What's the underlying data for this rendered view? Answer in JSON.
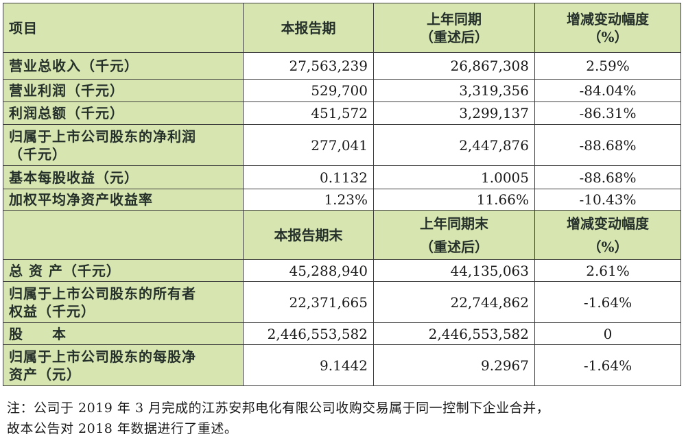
{
  "table": {
    "header1": {
      "item": "项目",
      "current": "本报告期",
      "prior_l1": "上年同期",
      "prior_l2": "（重述后）",
      "change_l1": "增减变动幅度",
      "change_l2": "（%）"
    },
    "rows1": [
      {
        "label": "营业总收入（千元）",
        "current": "27,563,239",
        "prior": "26,867,308",
        "change": "2.59%"
      },
      {
        "label": "营业利润（千元）",
        "current": "529,700",
        "prior": "3,319,356",
        "change": "-84.04%"
      },
      {
        "label": "利润总额（千元）",
        "current": "451,572",
        "prior": "3,299,137",
        "change": "-86.31%"
      },
      {
        "label_l1": "归属于上市公司股东的净利润",
        "label_l2": "（千元）",
        "current": "277,041",
        "prior": "2,447,876",
        "change": "-88.68%"
      },
      {
        "label": "基本每股收益（元）",
        "current": "0.1132",
        "prior": "1.0005",
        "change": "-88.68%"
      },
      {
        "label": "加权平均净资产收益率",
        "current": "1.23%",
        "prior": "11.66%",
        "change": "-10.43%"
      }
    ],
    "header2": {
      "current": "本报告期末",
      "prior_l1": "上年同期末",
      "prior_l2": "（重述后）",
      "change_l1": "增减变动幅度",
      "change_l2": "（%）"
    },
    "rows2": [
      {
        "label": "总 资 产（千元）",
        "current": "45,288,940",
        "prior": "44,135,063",
        "change": "2.61%"
      },
      {
        "label_l1": "归属于上市公司股东的所有者",
        "label_l2": "权益（千元）",
        "current": "22,371,665",
        "prior": "22,744,862",
        "change": "-1.64%"
      },
      {
        "label": "股　　本",
        "current": "2,446,553,582",
        "prior": "2,446,553,582",
        "change": "0"
      },
      {
        "label_l1": "归属于上市公司股东的每股净",
        "label_l2": "资产（元）",
        "current": "9.1442",
        "prior": "9.2967",
        "change": "-1.64%"
      }
    ]
  },
  "note": {
    "line1": "注：公司于 2019 年 3 月完成的江苏安邦电化有限公司收购交易属于同一控制下企业合并，",
    "line2": "故本公告对 2018 年数据进行了重述。"
  }
}
